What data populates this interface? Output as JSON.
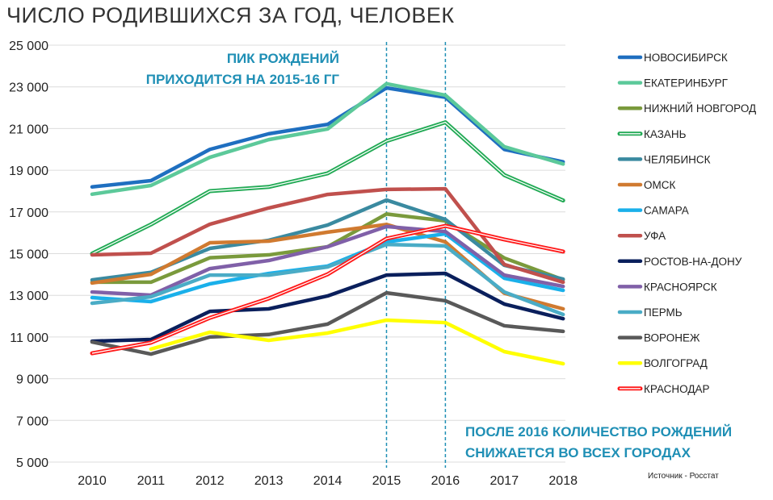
{
  "chart_data": {
    "type": "line",
    "title": "ЧИСЛО РОДИВШИХСЯ ЗА ГОД, ЧЕЛОВЕК",
    "xlabel": "",
    "ylabel": "",
    "x": [
      "2010",
      "2011",
      "2012",
      "2013",
      "2014",
      "2015",
      "2016",
      "2017",
      "2018"
    ],
    "ylim": [
      5000,
      25000
    ],
    "yticks": [
      5000,
      7000,
      9000,
      11000,
      13000,
      15000,
      17000,
      19000,
      21000,
      23000,
      25000
    ],
    "ytick_labels": [
      "5 000",
      "7 000",
      "9 000",
      "11 000",
      "13 000",
      "15 000",
      "17 000",
      "19 000",
      "21 000",
      "23 000",
      "25 000"
    ],
    "grid": true,
    "legend": "right",
    "series": [
      {
        "name": "НОВОСИБИРСК",
        "color": "#1f6fc0",
        "double": false,
        "values": [
          18200,
          18500,
          20000,
          20750,
          21200,
          22950,
          22500,
          20000,
          19400
        ]
      },
      {
        "name": "ЕКАТЕРИНБУРГ",
        "color": "#5cc99a",
        "double": false,
        "values": [
          17850,
          18270,
          19620,
          20470,
          20980,
          23150,
          22600,
          20130,
          19300
        ]
      },
      {
        "name": "НИЖНИЙ НОВГОРОД",
        "color": "#7a9a3c",
        "double": false,
        "values": [
          13630,
          13630,
          14800,
          14940,
          15330,
          16900,
          16570,
          14790,
          13750
        ]
      },
      {
        "name": "КАЗАНЬ",
        "color": "#22aa55",
        "double": true,
        "values": [
          15000,
          16400,
          18000,
          18200,
          18850,
          20400,
          21300,
          18770,
          17550
        ]
      },
      {
        "name": "ЧЕЛЯБИНСК",
        "color": "#3a8aa0",
        "double": false,
        "values": [
          13740,
          14100,
          15250,
          15640,
          16370,
          17570,
          16640,
          14440,
          13780
        ]
      },
      {
        "name": "ОМСК",
        "color": "#d07a30",
        "double": false,
        "values": [
          13590,
          14010,
          15520,
          15600,
          16030,
          16400,
          15560,
          13100,
          12350
        ]
      },
      {
        "name": "САМАРА",
        "color": "#1ab0ea",
        "double": false,
        "values": [
          12890,
          12700,
          13550,
          14050,
          14400,
          15560,
          15950,
          13820,
          13240
        ]
      },
      {
        "name": "УФА",
        "color": "#c0504d",
        "double": false,
        "values": [
          14940,
          15020,
          16410,
          17190,
          17840,
          18080,
          18110,
          14480,
          13630
        ]
      },
      {
        "name": "РОСТОВ-НА-ДОНУ",
        "color": "#0a1f5c",
        "double": false,
        "values": [
          10800,
          10880,
          12230,
          12350,
          12970,
          13970,
          14050,
          12580,
          11880
        ]
      },
      {
        "name": "КРАСНОЯРСК",
        "color": "#8060a8",
        "double": false,
        "values": [
          13160,
          13010,
          14280,
          14670,
          15330,
          16300,
          16060,
          13970,
          13430
        ]
      },
      {
        "name": "ПЕРМЬ",
        "color": "#4aacc6",
        "double": false,
        "values": [
          12620,
          12930,
          13970,
          13970,
          14360,
          15440,
          15370,
          13160,
          12080
        ]
      },
      {
        "name": "ВОРОНЕЖ",
        "color": "#595959",
        "double": false,
        "values": [
          10760,
          10180,
          11000,
          11120,
          11620,
          13120,
          12740,
          11540,
          11270
        ]
      },
      {
        "name": "ВОЛГОГРАД",
        "color": "#ffff00",
        "double": false,
        "values": [
          null,
          10420,
          11230,
          10840,
          11190,
          11810,
          11690,
          10300,
          9720
        ]
      },
      {
        "name": "КРАСНОДАР",
        "color": "#ff1a1a",
        "double": true,
        "values": [
          10220,
          10730,
          11920,
          12850,
          14010,
          15720,
          16330,
          15680,
          15100
        ]
      }
    ],
    "markers": [
      "2015",
      "2016"
    ],
    "annotations": {
      "peak_line1": "ПИК РОЖДЕНИЙ",
      "peak_line2": "ПРИХОДИТСЯ НА 2015-16 ГГ",
      "after_line1": "ПОСЛЕ 2016 КОЛИЧЕСТВО РОЖДЕНИЙ",
      "after_line2": "СНИЖАЕТСЯ ВО ВСЕХ ГОРОДАХ"
    },
    "source": "Источник - Росстат"
  }
}
